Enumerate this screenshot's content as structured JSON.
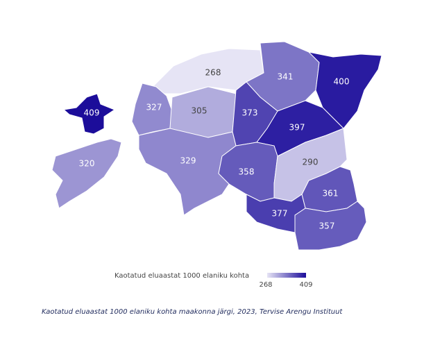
{
  "chart_data": {
    "type": "choropleth",
    "values": [
      268,
      341,
      400,
      409,
      327,
      305,
      373,
      397,
      320,
      329,
      358,
      290,
      361,
      377,
      357
    ],
    "legend": {
      "title": "Kaotatud eluaastat 1000 elaniku kohta",
      "range": [
        268,
        409
      ],
      "colors": [
        "#e6e4f5",
        "#1c0d9a"
      ]
    },
    "caption": "Kaotatud eluaastat 1000 elaniku kohta maakonna järgi, 2023, Tervise Arengu Instituut"
  }
}
